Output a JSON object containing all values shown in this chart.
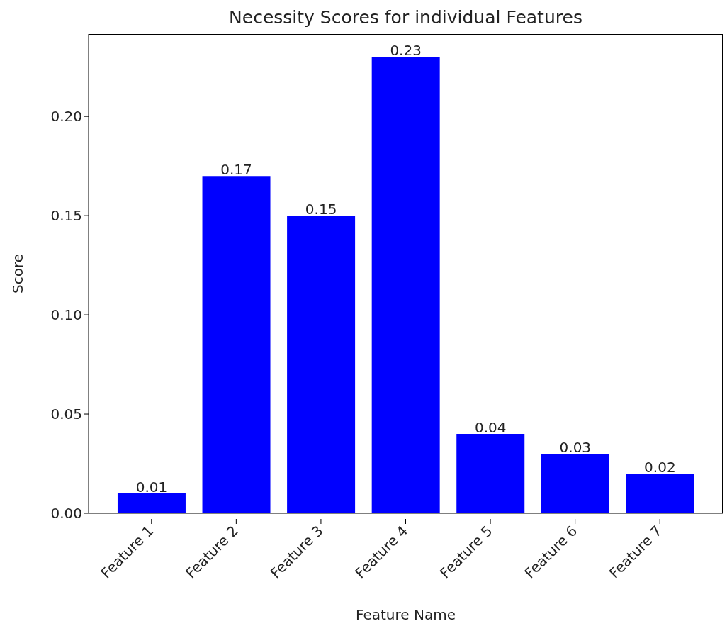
{
  "chart_data": {
    "type": "bar",
    "title": "Necessity Scores for individual Features",
    "xlabel": "Feature Name",
    "ylabel": "Score",
    "categories": [
      "Feature 1",
      "Feature 2",
      "Feature 3",
      "Feature 4",
      "Feature 5",
      "Feature 6",
      "Feature 7"
    ],
    "values": [
      0.01,
      0.17,
      0.15,
      0.23,
      0.04,
      0.03,
      0.02
    ],
    "color": "#0000ff",
    "ylim": [
      0,
      0.2415
    ],
    "yticks": [
      {
        "value": 0,
        "label": "0.00"
      },
      {
        "value": 0.05,
        "label": "0.05"
      },
      {
        "value": 0.1,
        "label": "0.10"
      },
      {
        "value": 0.15,
        "label": "0.15"
      },
      {
        "value": 0.2,
        "label": "0.20"
      }
    ],
    "data_labels": true,
    "grid": false
  }
}
